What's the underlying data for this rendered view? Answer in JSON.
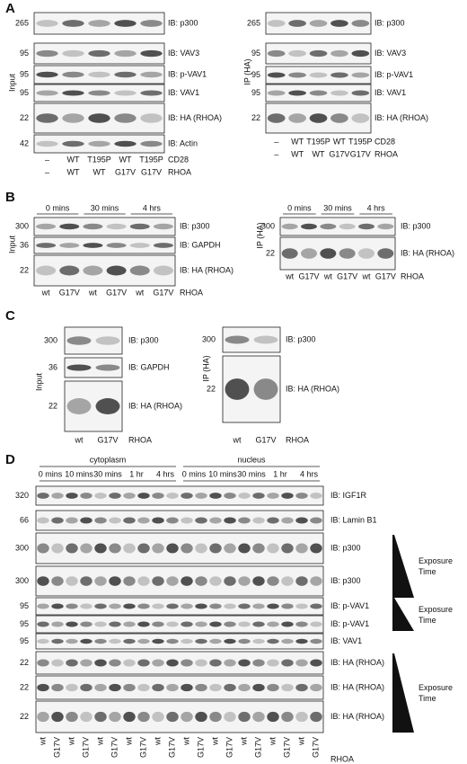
{
  "panels": [
    {
      "label": "A",
      "groups": [
        {
          "side": "Input",
          "blots": [
            {
              "mw": "265",
              "ib": "IB: p300"
            },
            {
              "mw": "95",
              "ib": "IB: VAV3"
            },
            {
              "mw": "95",
              "ib": "IB: p-VAV1"
            },
            {
              "mw": "95",
              "ib": "IB: VAV1"
            },
            {
              "mw": "22",
              "ib": "IB: HA (RHOA)"
            },
            {
              "mw": "42",
              "ib": "IB: Actin"
            }
          ],
          "lanes": [
            {
              "values": [
                "–",
                "WT",
                "T195P",
                "WT",
                "T195P"
              ],
              "label": "CD28"
            },
            {
              "values": [
                "–",
                "WT",
                "WT",
                "G17V",
                "G17V"
              ],
              "label": "RHOA"
            }
          ]
        },
        {
          "side": "IP (HA)",
          "blots": [
            {
              "mw": "265",
              "ib": "IB: p300"
            },
            {
              "mw": "95",
              "ib": "IB: VAV3"
            },
            {
              "mw": "95",
              "ib": "IB: p-VAV1"
            },
            {
              "mw": "95",
              "ib": "IB: VAV1"
            },
            {
              "mw": "22",
              "ib": "IB: HA (RHOA)"
            }
          ],
          "lanes": [
            {
              "values": [
                "–",
                "WT",
                "T195P",
                "WT",
                "T195P"
              ],
              "label": "CD28"
            },
            {
              "values": [
                "–",
                "WT",
                "WT",
                "G17V",
                "G17V"
              ],
              "label": "RHOA"
            }
          ]
        }
      ]
    },
    {
      "label": "B",
      "groups": [
        {
          "side": "Input",
          "times": [
            "0 mins",
            "30 mins",
            "4 hrs"
          ],
          "blots": [
            {
              "mw": "300",
              "ib": "IB: p300"
            },
            {
              "mw": "36",
              "ib": "IB: GAPDH"
            },
            {
              "mw": "22",
              "ib": "IB: HA (RHOA)"
            }
          ],
          "lanes": [
            {
              "values": [
                "wt",
                "G17V",
                "wt",
                "G17V",
                "wt",
                "G17V"
              ],
              "label": "RHOA"
            }
          ]
        },
        {
          "side": "IP (HA)",
          "times": [
            "0 mins",
            "30 mins",
            "4 hrs"
          ],
          "blots": [
            {
              "mw": "300",
              "ib": "IB: p300"
            },
            {
              "mw": "22",
              "ib": "IB: HA (RHOA)"
            }
          ],
          "lanes": [
            {
              "values": [
                "wt",
                "G17V",
                "wt",
                "G17V",
                "wt",
                "G17V"
              ],
              "label": "RHOA"
            }
          ]
        }
      ]
    },
    {
      "label": "C",
      "groups": [
        {
          "side": "Input",
          "blots": [
            {
              "mw": "300",
              "ib": "IB: p300"
            },
            {
              "mw": "36",
              "ib": "IB: GAPDH"
            },
            {
              "mw": "22",
              "ib": "IB: HA (RHOA)"
            }
          ],
          "lanes": [
            {
              "values": [
                "wt",
                "G17V"
              ],
              "label": "RHOA"
            }
          ]
        },
        {
          "side": "IP (HA)",
          "blots": [
            {
              "mw": "300",
              "ib": "IB: p300"
            },
            {
              "mw": "22",
              "ib": "IB: HA (RHOA)"
            }
          ],
          "lanes": [
            {
              "values": [
                "wt",
                "G17V"
              ],
              "label": "RHOA"
            }
          ]
        }
      ]
    },
    {
      "label": "D",
      "groups": [
        {
          "compartments": [
            {
              "name": "cytoplasm",
              "times": [
                "0 mins",
                "10 mins",
                "30 mins",
                "1 hr",
                "4 hrs"
              ]
            },
            {
              "name": "nucleus",
              "times": [
                "0 mins",
                "10 mins",
                "30 mins",
                "1 hr",
                "4 hrs"
              ]
            }
          ],
          "blots": [
            {
              "mw": "320",
              "ib": "IB: IGF1R"
            },
            {
              "mw": "66",
              "ib": "IB: Lamin B1"
            },
            {
              "mw": "300",
              "ib": "IB: p300"
            },
            {
              "mw": "300",
              "ib": "IB: p300"
            },
            {
              "mw": "95",
              "ib": "IB: p-VAV1"
            },
            {
              "mw": "95",
              "ib": "IB: p-VAV1"
            },
            {
              "mw": "95",
              "ib": "IB: VAV1"
            },
            {
              "mw": "22",
              "ib": "IB: HA (RHOA)"
            },
            {
              "mw": "22",
              "ib": "IB: HA (RHOA)"
            },
            {
              "mw": "22",
              "ib": "IB: HA (RHOA)"
            }
          ],
          "lanes": [
            {
              "values": [
                "wt",
                "G17V",
                "wt",
                "G17V",
                "wt",
                "G17V",
                "wt",
                "G17V",
                "wt",
                "G17V",
                "wt",
                "G17V",
                "wt",
                "G17V",
                "wt",
                "G17V",
                "wt",
                "G17V",
                "wt",
                "G17V"
              ],
              "label": "RHOA"
            }
          ],
          "exposure": [
            "Exposure Time",
            "Exposure Time",
            "Exposure Time"
          ]
        }
      ]
    }
  ]
}
